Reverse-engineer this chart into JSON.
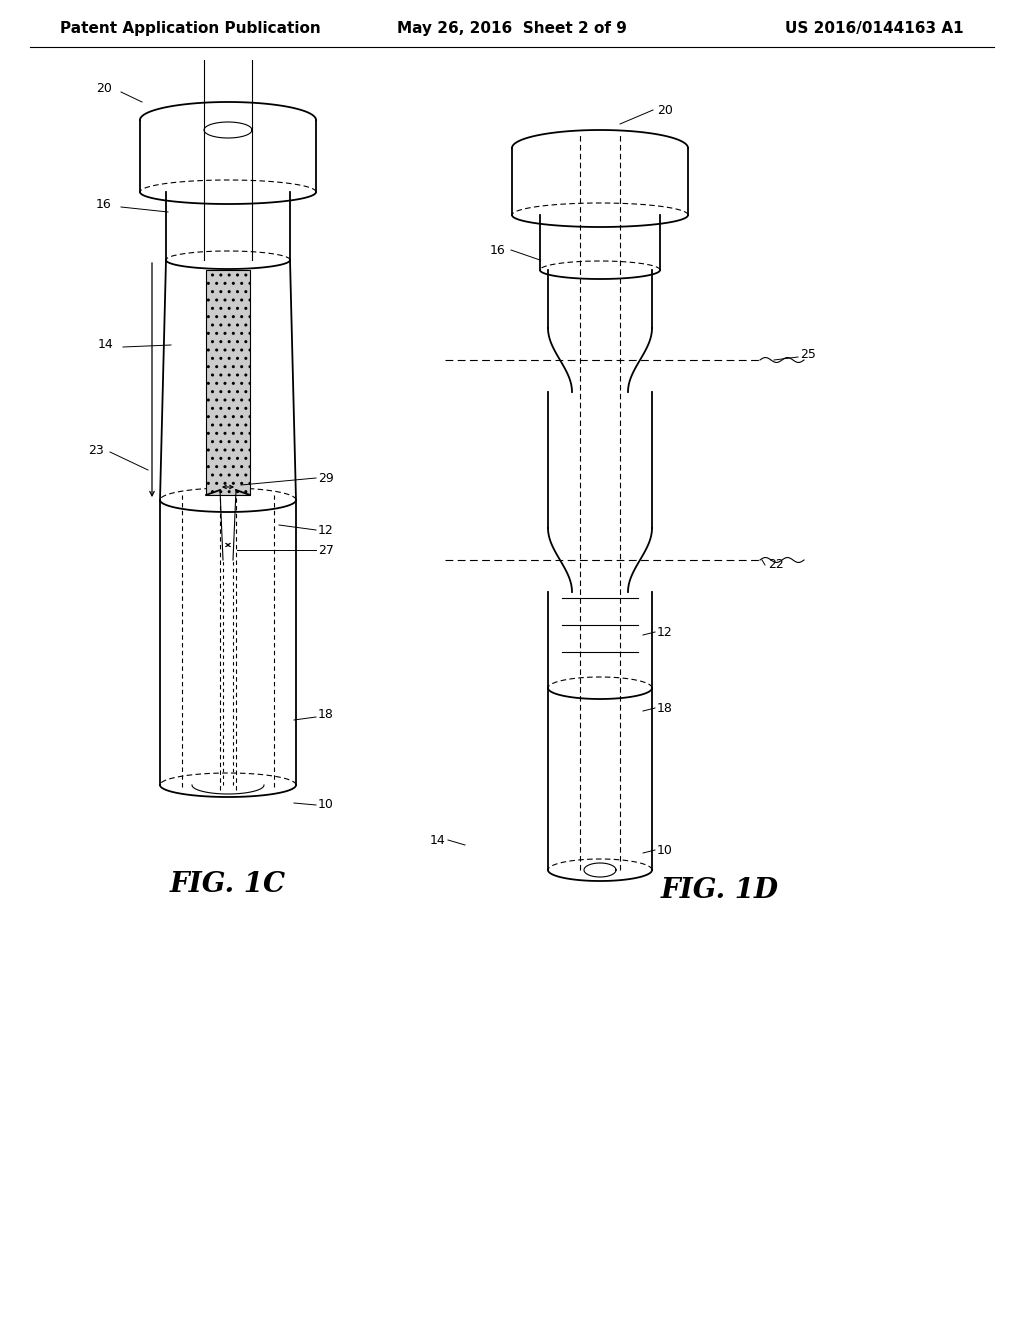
{
  "title_left": "Patent Application Publication",
  "title_mid": "May 26, 2016  Sheet 2 of 9",
  "title_right": "US 2016/0144163 A1",
  "fig1c_label": "FIG. 1C",
  "fig1d_label": "FIG. 1D",
  "bg_color": "#ffffff",
  "line_color": "#000000",
  "header_fontsize": 11,
  "fig_label_fontsize": 20,
  "ref_fontsize": 9,
  "lw_main": 1.3,
  "lw_thin": 0.8
}
